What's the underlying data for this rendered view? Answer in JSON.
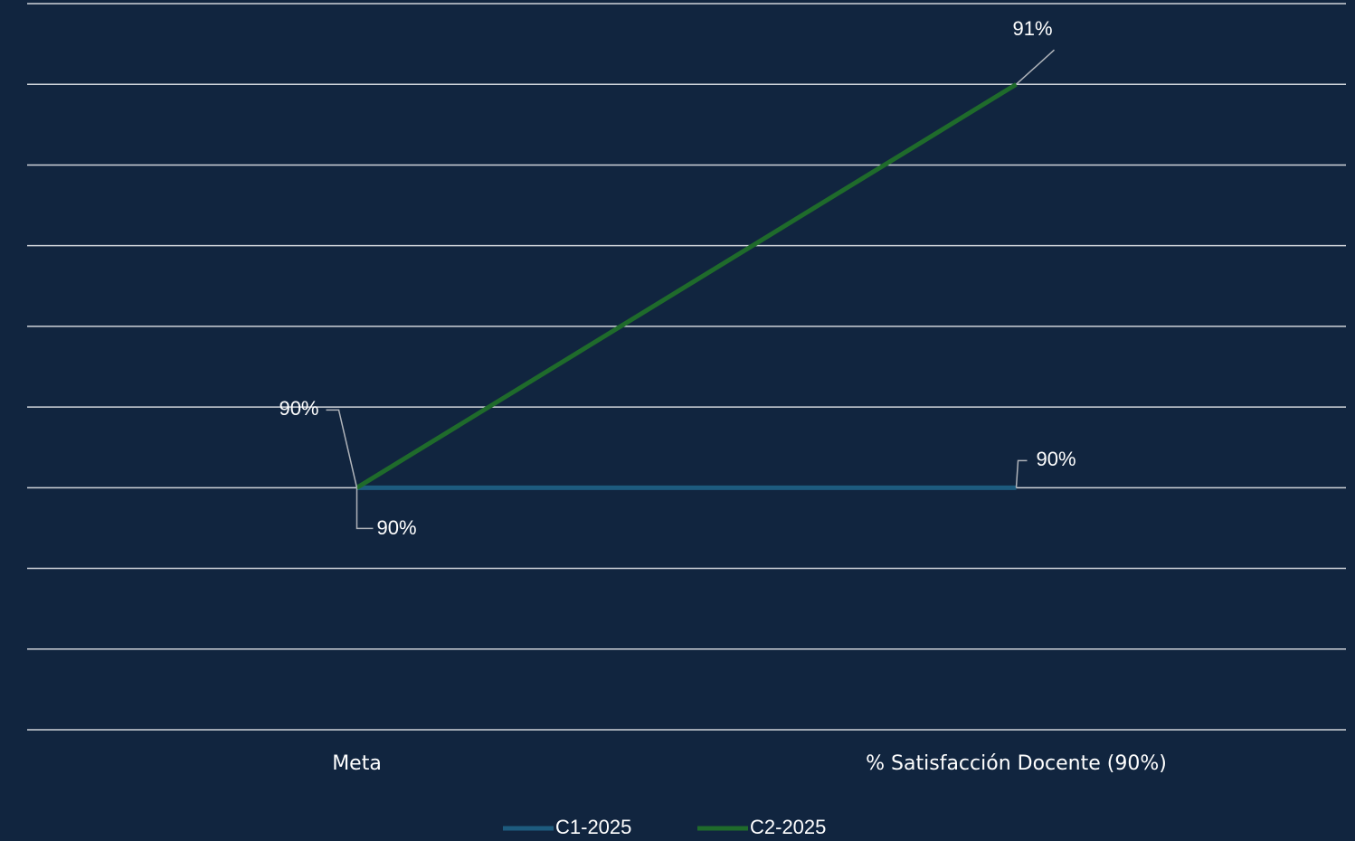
{
  "chart_data": {
    "type": "line",
    "categories": [
      "Meta",
      "% Satisfacción Docente (90%)"
    ],
    "series": [
      {
        "name": "C1-2025",
        "color": "#1d5b7e",
        "values": [
          90,
          90
        ],
        "value_labels": [
          "90%",
          "90%"
        ]
      },
      {
        "name": "C2-2025",
        "color": "#1f6b2b",
        "values": [
          90,
          91
        ],
        "value_labels": [
          "90%",
          "91%"
        ]
      }
    ],
    "ylim": [
      89.4,
      91.2
    ],
    "yticks": [
      89.4,
      89.6,
      89.8,
      90,
      90.2,
      90.4,
      90.6,
      90.8,
      91,
      91.2
    ],
    "grid": true,
    "legend": "bottom"
  }
}
